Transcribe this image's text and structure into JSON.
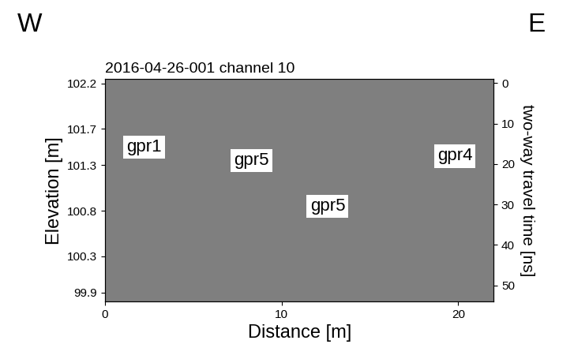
{
  "chart_data": {
    "type": "radargram",
    "title": "2016-04-26-001 channel 10",
    "direction_labels": {
      "left": "W",
      "right": "E"
    },
    "x_label": "Distance [m]",
    "y_label": "Elevation [m]",
    "y2_label": "two-way travel time [ns]",
    "xlim": [
      0,
      22
    ],
    "xticks": [
      0,
      10,
      20
    ],
    "ylim": [
      99.8,
      102.25
    ],
    "yticks": [
      99.9,
      100.3,
      100.8,
      101.3,
      101.7,
      102.2
    ],
    "y2lim": [
      54,
      -1
    ],
    "y2ticks": [
      0,
      10,
      20,
      30,
      40,
      50
    ],
    "color": "#7f7f7f",
    "annotations": [
      {
        "text": "gpr1",
        "x": 2.2,
        "y": 101.5
      },
      {
        "text": "gpr5",
        "x": 8.3,
        "y": 101.35
      },
      {
        "text": "gpr5",
        "x": 12.6,
        "y": 100.85
      },
      {
        "text": "gpr4",
        "x": 19.8,
        "y": 101.4
      }
    ]
  }
}
